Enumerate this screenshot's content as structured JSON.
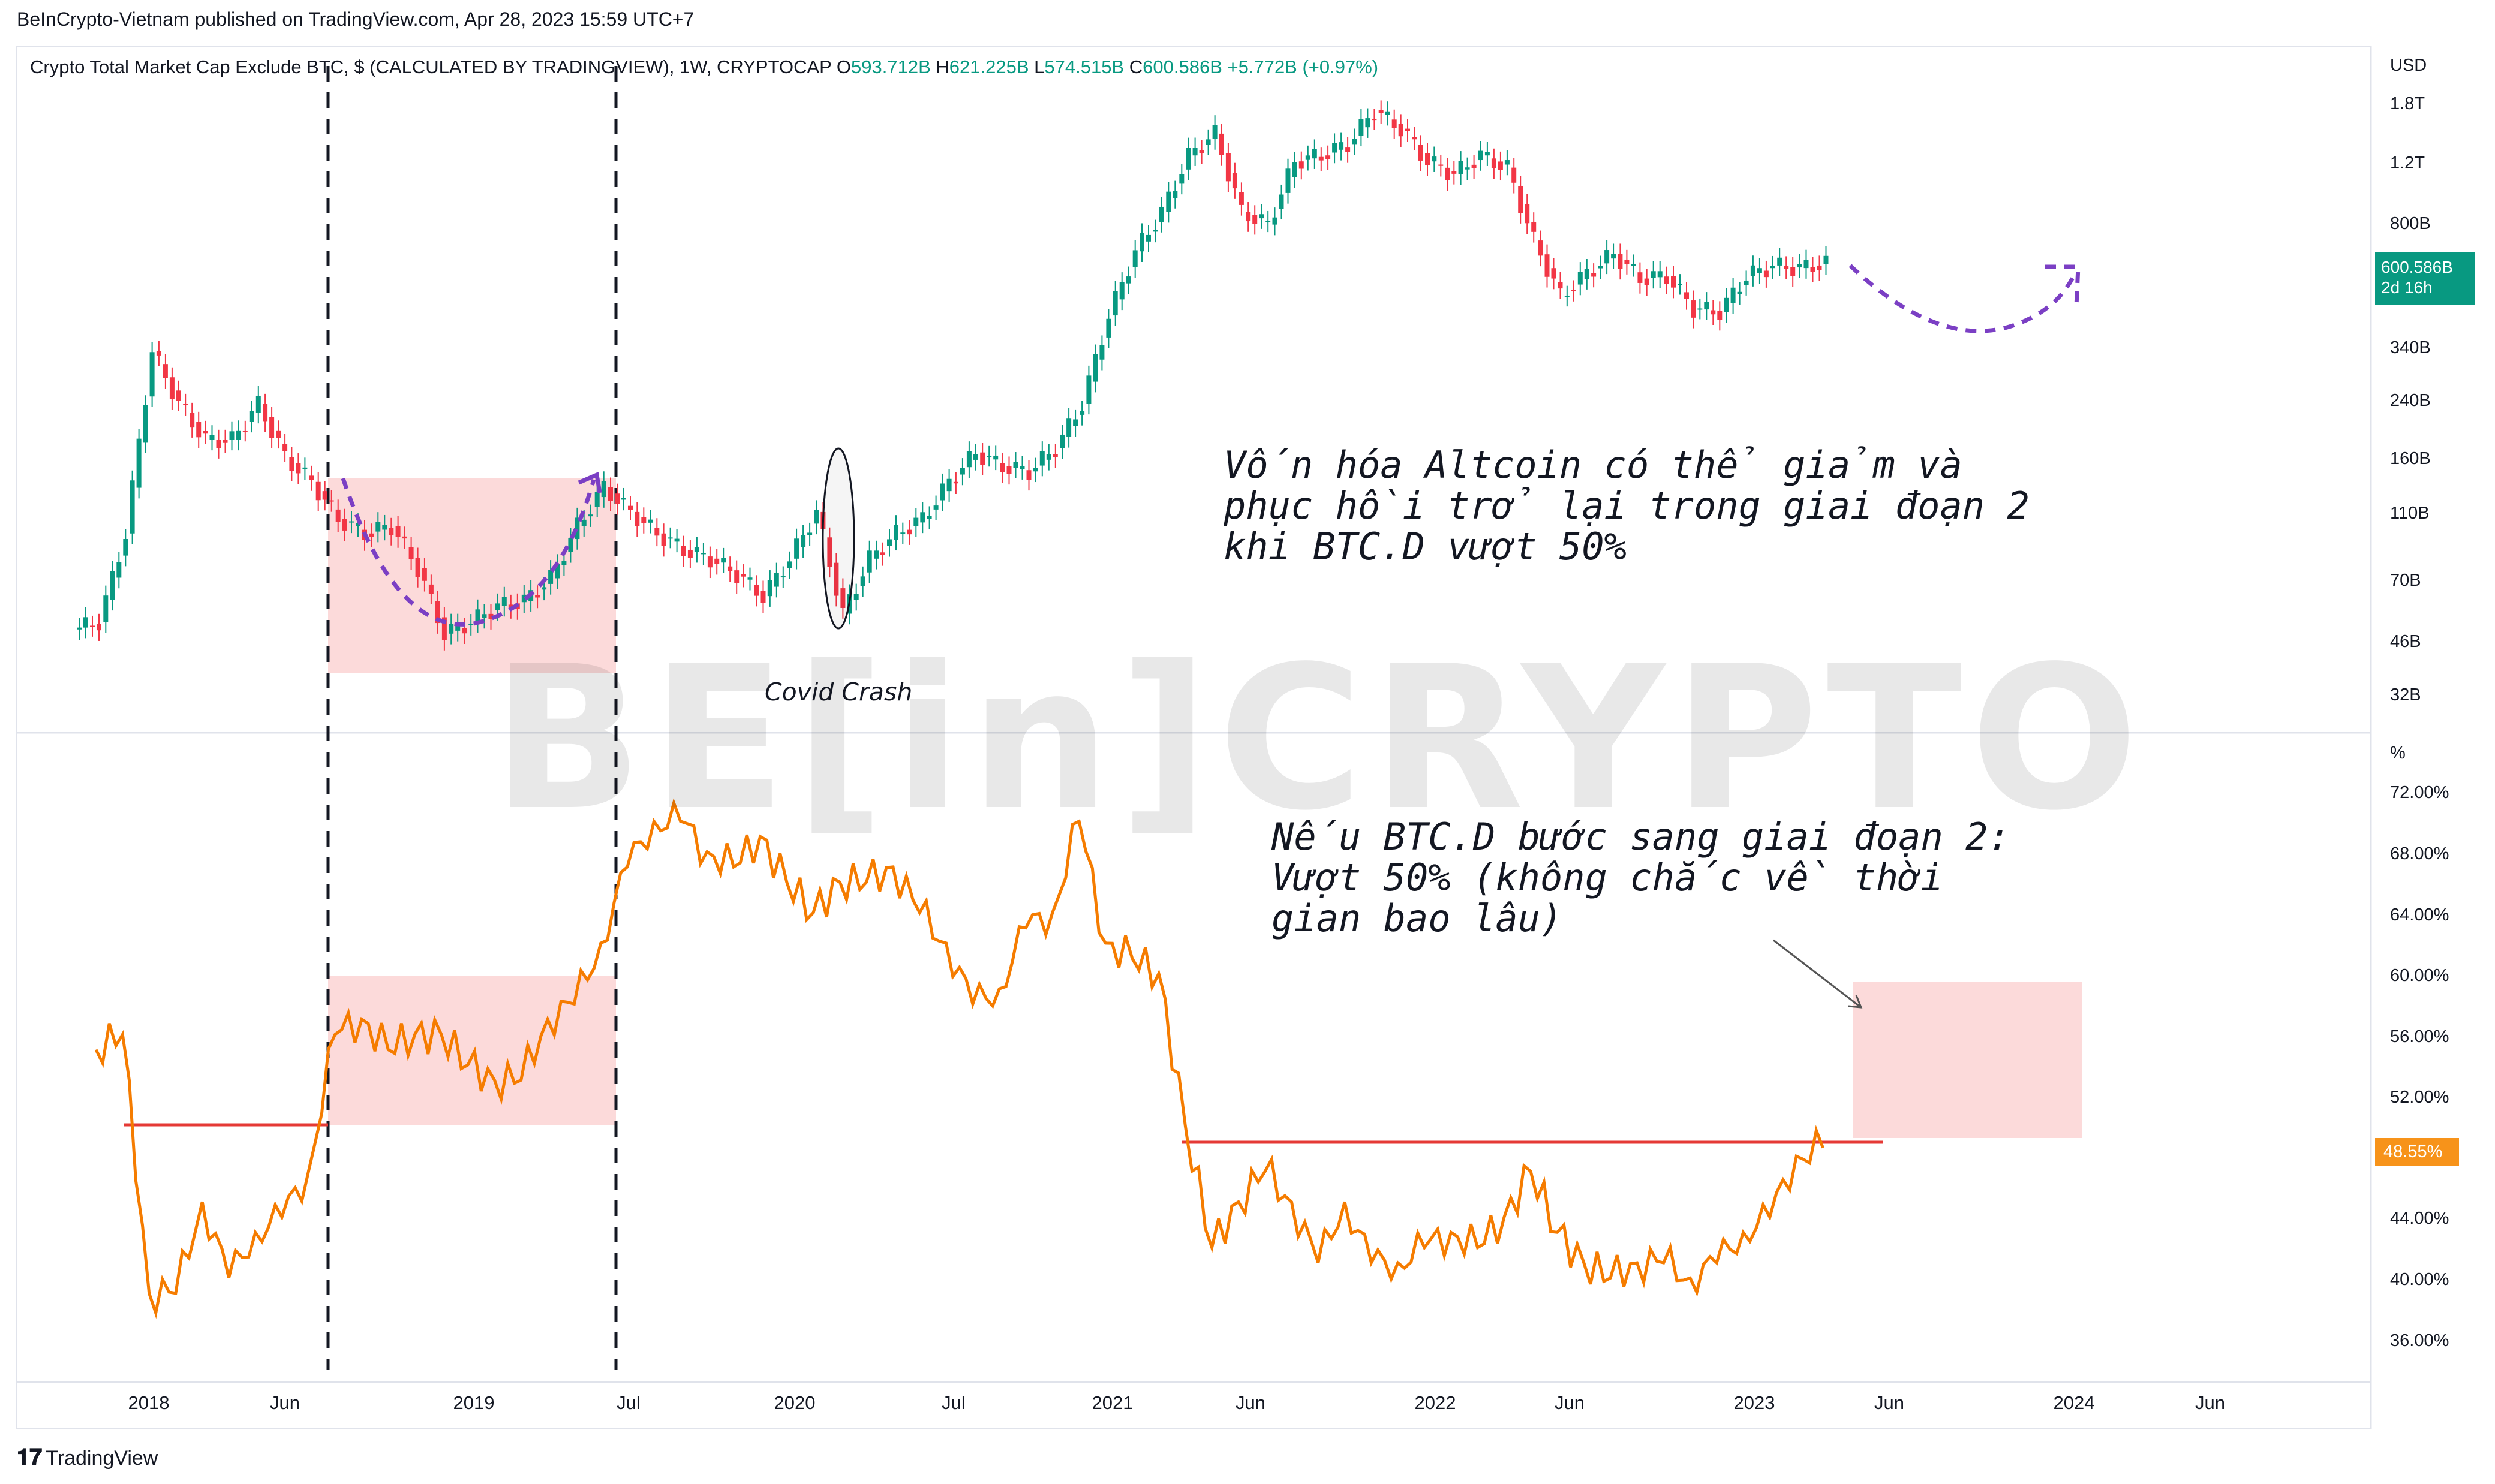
{
  "header": {
    "publisher_line": "BeInCrypto-Vietnam published on TradingView.com, Apr 28, 2023 15:59 UTC+7"
  },
  "legend": {
    "symbol": "Crypto Total Market Cap Exclude BTC, $ (CALCULATED BY TRADINGVIEW), 1W, CRYPTOCAP",
    "open_label": "O",
    "open_value": "593.712B",
    "high_label": "H",
    "high_value": "621.225B",
    "low_label": "L",
    "low_value": "574.515B",
    "close_label": "C",
    "close_value": "600.586B",
    "change": "+5.772B (+0.97%)"
  },
  "top_axis": {
    "unit": "USD",
    "ticks": [
      "1.8T",
      "1.2T",
      "800B",
      "340B",
      "240B",
      "160B",
      "110B",
      "70B",
      "46B",
      "32B"
    ]
  },
  "bottom_axis": {
    "unit": "%",
    "ticks": [
      "72.00%",
      "68.00%",
      "64.00%",
      "60.00%",
      "56.00%",
      "52.00%",
      "44.00%",
      "40.00%",
      "36.00%"
    ]
  },
  "x_axis": {
    "ticks": [
      "2018",
      "Jun",
      "2019",
      "Jul",
      "2020",
      "Jul",
      "2021",
      "Jun",
      "2022",
      "Jun",
      "2023",
      "Jun",
      "2024",
      "Jun"
    ]
  },
  "badges": {
    "price_value": "600.586B",
    "price_countdown": "2d 16h",
    "dominance_value": "48.55%"
  },
  "annotations": {
    "altcoin_note": "Vốn hóa Altcoin có thể giảm và phục hồi trở lại trong giai đoạn 2 khi BTC.D vượt 50%",
    "btcd_note": "Nếu BTC.D bước sang giai đoạn 2: Vượt 50% (không chắc về thời gian bao lâu)",
    "covid_label": "Covid Crash"
  },
  "watermark": "BE[in]CRYPTO",
  "footer": {
    "brand": "TradingView"
  },
  "colors": {
    "up": "#089981",
    "down": "#f23645",
    "dominance_line": "#f57c00",
    "threshold_line": "#e53935",
    "highlight_box": "#fbd3d3",
    "projection": "#7b3fc4"
  },
  "chart_data": [
    {
      "type": "candlestick",
      "title": "Crypto Total Market Cap Exclude BTC, $ (CALCULATED BY TRADINGVIEW), 1W, CRYPTOCAP",
      "ylabel": "USD",
      "scale": "log",
      "ylim": [
        28,
        2000
      ],
      "unit": "B",
      "series": [
        {
          "name": "Crypto Total Market Cap Exclude BTC",
          "points": [
            {
              "x": "2017-11",
              "y": 52
            },
            {
              "x": "2017-12",
              "y": 95
            },
            {
              "x": "2018-01",
              "y": 330
            },
            {
              "x": "2018-02",
              "y": 230
            },
            {
              "x": "2018-03",
              "y": 180
            },
            {
              "x": "2018-04",
              "y": 180
            },
            {
              "x": "2018-05",
              "y": 230
            },
            {
              "x": "2018-06",
              "y": 160
            },
            {
              "x": "2018-07",
              "y": 135
            },
            {
              "x": "2018-08",
              "y": 105
            },
            {
              "x": "2018-09",
              "y": 95
            },
            {
              "x": "2018-10",
              "y": 100
            },
            {
              "x": "2018-11",
              "y": 75
            },
            {
              "x": "2018-12",
              "y": 48
            },
            {
              "x": "2019-01",
              "y": 52
            },
            {
              "x": "2019-02",
              "y": 58
            },
            {
              "x": "2019-03",
              "y": 60
            },
            {
              "x": "2019-04",
              "y": 70
            },
            {
              "x": "2019-05",
              "y": 100
            },
            {
              "x": "2019-06",
              "y": 130
            },
            {
              "x": "2019-07",
              "y": 110
            },
            {
              "x": "2019-08",
              "y": 95
            },
            {
              "x": "2019-09",
              "y": 85
            },
            {
              "x": "2019-10",
              "y": 80
            },
            {
              "x": "2019-11",
              "y": 72
            },
            {
              "x": "2019-12",
              "y": 62
            },
            {
              "x": "2020-01",
              "y": 80
            },
            {
              "x": "2020-02",
              "y": 110
            },
            {
              "x": "2020-03",
              "y": 55
            },
            {
              "x": "2020-04",
              "y": 80
            },
            {
              "x": "2020-05",
              "y": 95
            },
            {
              "x": "2020-06",
              "y": 105
            },
            {
              "x": "2020-07",
              "y": 135
            },
            {
              "x": "2020-08",
              "y": 165
            },
            {
              "x": "2020-09",
              "y": 150
            },
            {
              "x": "2020-10",
              "y": 145
            },
            {
              "x": "2020-11",
              "y": 170
            },
            {
              "x": "2020-12",
              "y": 230
            },
            {
              "x": "2021-01",
              "y": 420
            },
            {
              "x": "2021-02",
              "y": 650
            },
            {
              "x": "2021-03",
              "y": 850
            },
            {
              "x": "2021-04",
              "y": 1250
            },
            {
              "x": "2021-05",
              "y": 1450
            },
            {
              "x": "2021-06",
              "y": 850
            },
            {
              "x": "2021-07",
              "y": 780
            },
            {
              "x": "2021-08",
              "y": 1200
            },
            {
              "x": "2021-09",
              "y": 1250
            },
            {
              "x": "2021-10",
              "y": 1350
            },
            {
              "x": "2021-11",
              "y": 1700
            },
            {
              "x": "2021-12",
              "y": 1500
            },
            {
              "x": "2022-01",
              "y": 1200
            },
            {
              "x": "2022-02",
              "y": 1100
            },
            {
              "x": "2022-03",
              "y": 1250
            },
            {
              "x": "2022-04",
              "y": 1150
            },
            {
              "x": "2022-05",
              "y": 700
            },
            {
              "x": "2022-06",
              "y": 480
            },
            {
              "x": "2022-07",
              "y": 560
            },
            {
              "x": "2022-08",
              "y": 640
            },
            {
              "x": "2022-09",
              "y": 540
            },
            {
              "x": "2022-10",
              "y": 550
            },
            {
              "x": "2022-11",
              "y": 440
            },
            {
              "x": "2022-12",
              "y": 430
            },
            {
              "x": "2023-01",
              "y": 550
            },
            {
              "x": "2023-02",
              "y": 590
            },
            {
              "x": "2023-03",
              "y": 580
            },
            {
              "x": "2023-04",
              "y": 600
            }
          ]
        }
      ],
      "annotations": [
        "Covid Crash"
      ]
    },
    {
      "type": "line",
      "title": "BTC.D",
      "ylabel": "%",
      "ylim": [
        34,
        75
      ],
      "series": [
        {
          "name": "BTC.D",
          "points": [
            {
              "x": "2017-11",
              "y": 55
            },
            {
              "x": "2017-12",
              "y": 56
            },
            {
              "x": "2018-01",
              "y": 39
            },
            {
              "x": "2018-02",
              "y": 39
            },
            {
              "x": "2018-03",
              "y": 45
            },
            {
              "x": "2018-04",
              "y": 40
            },
            {
              "x": "2018-05",
              "y": 43
            },
            {
              "x": "2018-06",
              "y": 44
            },
            {
              "x": "2018-07",
              "y": 47
            },
            {
              "x": "2018-08",
              "y": 56
            },
            {
              "x": "2018-09",
              "y": 57
            },
            {
              "x": "2018-10",
              "y": 55
            },
            {
              "x": "2018-11",
              "y": 56
            },
            {
              "x": "2018-12",
              "y": 56
            },
            {
              "x": "2019-01",
              "y": 54
            },
            {
              "x": "2019-02",
              "y": 53
            },
            {
              "x": "2019-03",
              "y": 53
            },
            {
              "x": "2019-04",
              "y": 57
            },
            {
              "x": "2019-05",
              "y": 58
            },
            {
              "x": "2019-06",
              "y": 62
            },
            {
              "x": "2019-07",
              "y": 67
            },
            {
              "x": "2019-08",
              "y": 70
            },
            {
              "x": "2019-09",
              "y": 70
            },
            {
              "x": "2019-10",
              "y": 68
            },
            {
              "x": "2019-11",
              "y": 67
            },
            {
              "x": "2019-12",
              "y": 69
            },
            {
              "x": "2020-01",
              "y": 66
            },
            {
              "x": "2020-02",
              "y": 64
            },
            {
              "x": "2020-03",
              "y": 66
            },
            {
              "x": "2020-04",
              "y": 66
            },
            {
              "x": "2020-05",
              "y": 67
            },
            {
              "x": "2020-06",
              "y": 64
            },
            {
              "x": "2020-07",
              "y": 62
            },
            {
              "x": "2020-08",
              "y": 58
            },
            {
              "x": "2020-09",
              "y": 59
            },
            {
              "x": "2020-10",
              "y": 63
            },
            {
              "x": "2020-11",
              "y": 64
            },
            {
              "x": "2020-12",
              "y": 70
            },
            {
              "x": "2021-01",
              "y": 62
            },
            {
              "x": "2021-02",
              "y": 61
            },
            {
              "x": "2021-03",
              "y": 60
            },
            {
              "x": "2021-04",
              "y": 50
            },
            {
              "x": "2021-05",
              "y": 42
            },
            {
              "x": "2021-06",
              "y": 45
            },
            {
              "x": "2021-07",
              "y": 47
            },
            {
              "x": "2021-08",
              "y": 45
            },
            {
              "x": "2021-09",
              "y": 41
            },
            {
              "x": "2021-10",
              "y": 45
            },
            {
              "x": "2021-11",
              "y": 41
            },
            {
              "x": "2021-12",
              "y": 41
            },
            {
              "x": "2022-01",
              "y": 42
            },
            {
              "x": "2022-02",
              "y": 43
            },
            {
              "x": "2022-03",
              "y": 42
            },
            {
              "x": "2022-04",
              "y": 44
            },
            {
              "x": "2022-05",
              "y": 47
            },
            {
              "x": "2022-06",
              "y": 43
            },
            {
              "x": "2022-07",
              "y": 41
            },
            {
              "x": "2022-08",
              "y": 40
            },
            {
              "x": "2022-09",
              "y": 41
            },
            {
              "x": "2022-10",
              "y": 41
            },
            {
              "x": "2022-11",
              "y": 40
            },
            {
              "x": "2022-12",
              "y": 41
            },
            {
              "x": "2023-01",
              "y": 43
            },
            {
              "x": "2023-02",
              "y": 44
            },
            {
              "x": "2023-03",
              "y": 48
            },
            {
              "x": "2023-04",
              "y": 48.55
            }
          ]
        }
      ],
      "threshold": 50,
      "annotations": [
        "Nếu BTC.D bước sang giai đoạn 2: Vượt 50% (không chắc về thời gian bao lâu)"
      ]
    }
  ]
}
